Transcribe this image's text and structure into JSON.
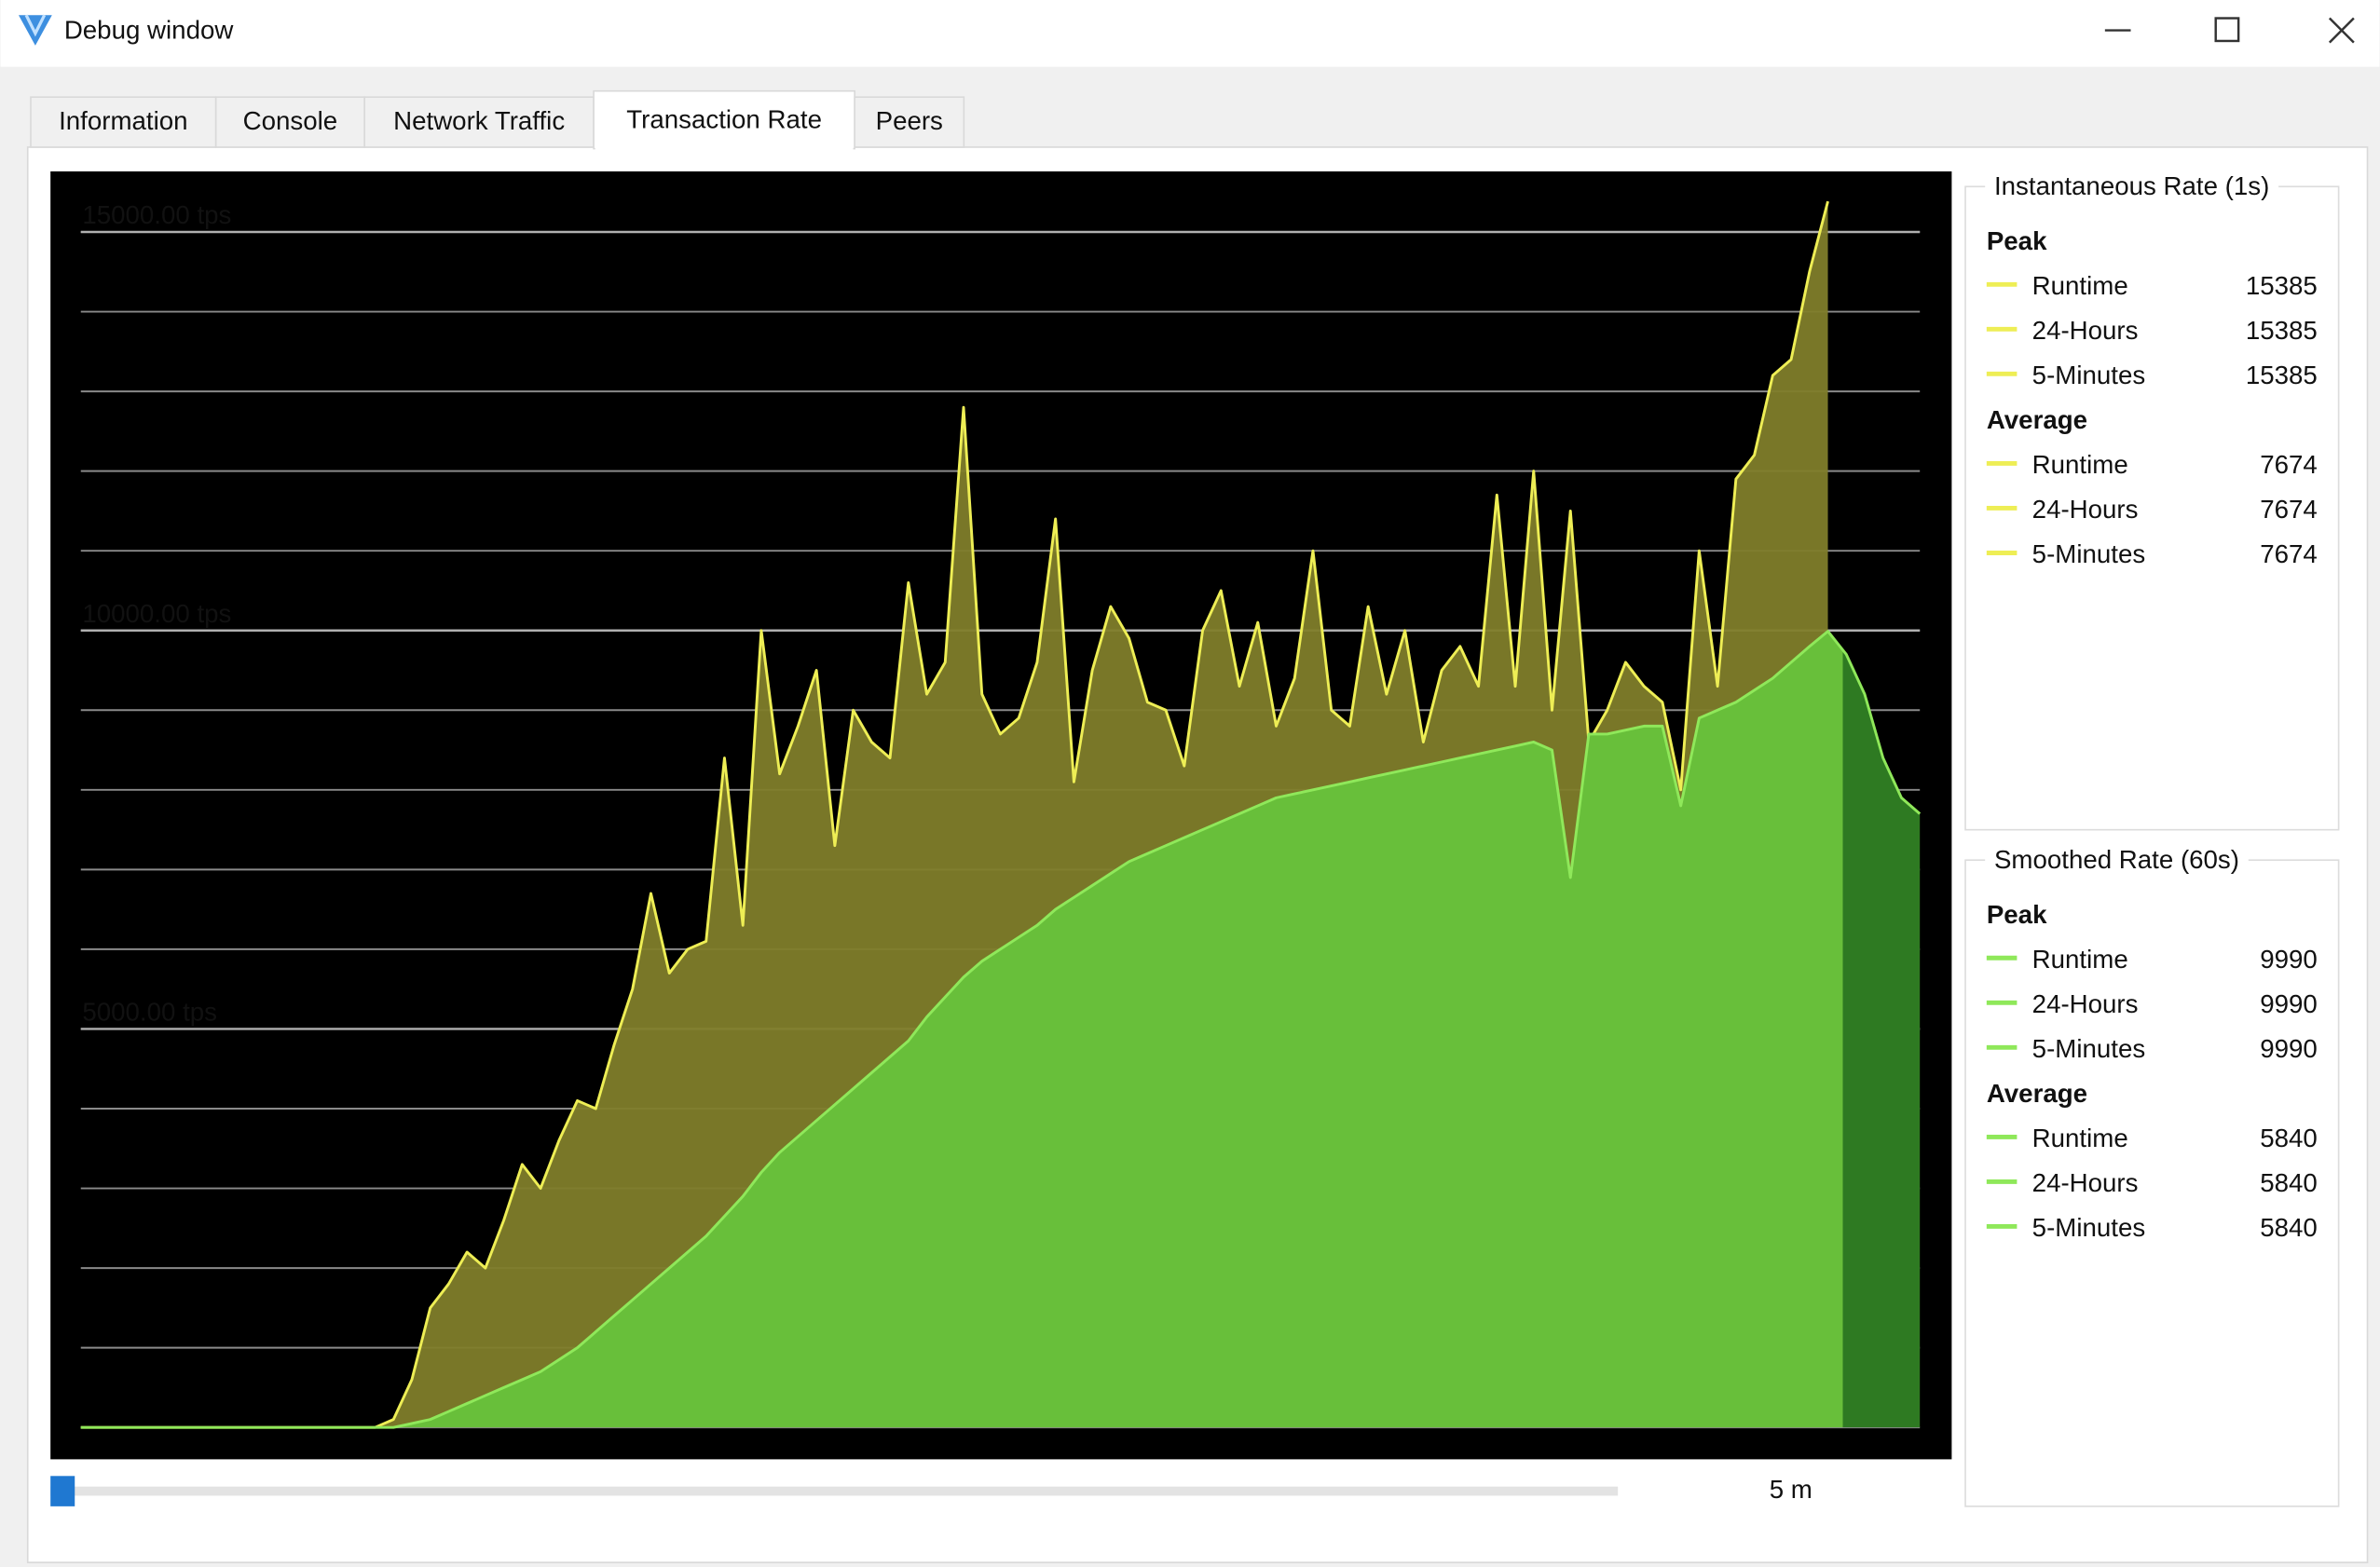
{
  "window": {
    "title": "Debug window"
  },
  "tabs": [
    "Information",
    "Console",
    "Network Traffic",
    "Transaction Rate",
    "Peers"
  ],
  "active_tab": 3,
  "chart_data": {
    "type": "area",
    "ylim": [
      -400,
      15760
    ],
    "yticks": [
      {
        "value": 5000,
        "label": "5000.00 tps"
      },
      {
        "value": 10000,
        "label": "10000.00 tps"
      },
      {
        "value": 15000,
        "label": "15000.00 tps"
      }
    ],
    "grid_yticks": [
      0,
      1000,
      2000,
      3000,
      4000,
      5000,
      6000,
      7000,
      8000,
      9000,
      10000,
      11000,
      12000,
      13000,
      14000,
      15000
    ],
    "series": [
      {
        "name": "Instantaneous Rate (1s)",
        "color": "#eeee55",
        "fill": "#807d2a",
        "values": [
          0,
          0,
          0,
          0,
          0,
          0,
          0,
          0,
          0,
          0,
          0,
          0,
          0,
          0,
          0,
          0,
          0,
          100,
          600,
          1500,
          1800,
          2200,
          2000,
          2600,
          3300,
          3000,
          3600,
          4100,
          4000,
          4800,
          5500,
          6700,
          5700,
          6000,
          6100,
          8400,
          6300,
          10000,
          8200,
          8800,
          9500,
          7300,
          9000,
          8600,
          8400,
          10600,
          9200,
          9600,
          12800,
          9200,
          8700,
          8900,
          9600,
          11400,
          8100,
          9500,
          10300,
          9900,
          9100,
          9000,
          8300,
          10000,
          10500,
          9300,
          10100,
          8800,
          9400,
          11000,
          9000,
          8800,
          10300,
          9200,
          10000,
          8600,
          9500,
          9800,
          9300,
          11700,
          9300,
          12000,
          9000,
          11500,
          8600,
          9000,
          9600,
          9300,
          9100,
          8000,
          11000,
          9300,
          11900,
          12200,
          13200,
          13400,
          14500,
          15385,
          null,
          null,
          null,
          null,
          null
        ]
      },
      {
        "name": "Smoothed Rate (60s)",
        "color": "#8fe85a",
        "fill": "#68bf3a",
        "values": [
          0,
          0,
          0,
          0,
          0,
          0,
          0,
          0,
          0,
          0,
          0,
          0,
          0,
          0,
          0,
          0,
          0,
          0,
          50,
          100,
          200,
          300,
          400,
          500,
          600,
          700,
          850,
          1000,
          1200,
          1400,
          1600,
          1800,
          2000,
          2200,
          2400,
          2650,
          2900,
          3200,
          3450,
          3650,
          3850,
          4050,
          4250,
          4450,
          4650,
          4850,
          5150,
          5400,
          5650,
          5850,
          6000,
          6150,
          6300,
          6500,
          6650,
          6800,
          6950,
          7100,
          7200,
          7300,
          7400,
          7500,
          7600,
          7700,
          7800,
          7900,
          7950,
          8000,
          8050,
          8100,
          8150,
          8200,
          8250,
          8300,
          8350,
          8400,
          8450,
          8500,
          8550,
          8600,
          8500,
          6900,
          8700,
          8700,
          8750,
          8800,
          8800,
          7800,
          8900,
          9000,
          9100,
          9250,
          9400,
          9600,
          9800,
          9990,
          9700,
          9200,
          8400,
          7900,
          7700
        ]
      }
    ]
  },
  "slider": {
    "label": "5 m"
  },
  "stats": [
    {
      "sections": [
        {
          "heading": "Peak",
          "rows": [
            {
              "label": "Runtime",
              "value": 15385
            },
            {
              "label": "24-Hours",
              "value": 15385
            },
            {
              "label": "5-Minutes",
              "value": 15385
            }
          ]
        },
        {
          "heading": "Average",
          "rows": [
            {
              "label": "Runtime",
              "value": 7674
            },
            {
              "label": "24-Hours",
              "value": 7674
            },
            {
              "label": "5-Minutes",
              "value": 7674
            }
          ]
        }
      ]
    },
    {
      "sections": [
        {
          "heading": "Peak",
          "rows": [
            {
              "label": "Runtime",
              "value": 9990
            },
            {
              "label": "24-Hours",
              "value": 9990
            },
            {
              "label": "5-Minutes",
              "value": 9990
            }
          ]
        },
        {
          "heading": "Average",
          "rows": [
            {
              "label": "Runtime",
              "value": 5840
            },
            {
              "label": "24-Hours",
              "value": 5840
            },
            {
              "label": "5-Minutes",
              "value": 5840
            }
          ]
        }
      ]
    }
  ]
}
